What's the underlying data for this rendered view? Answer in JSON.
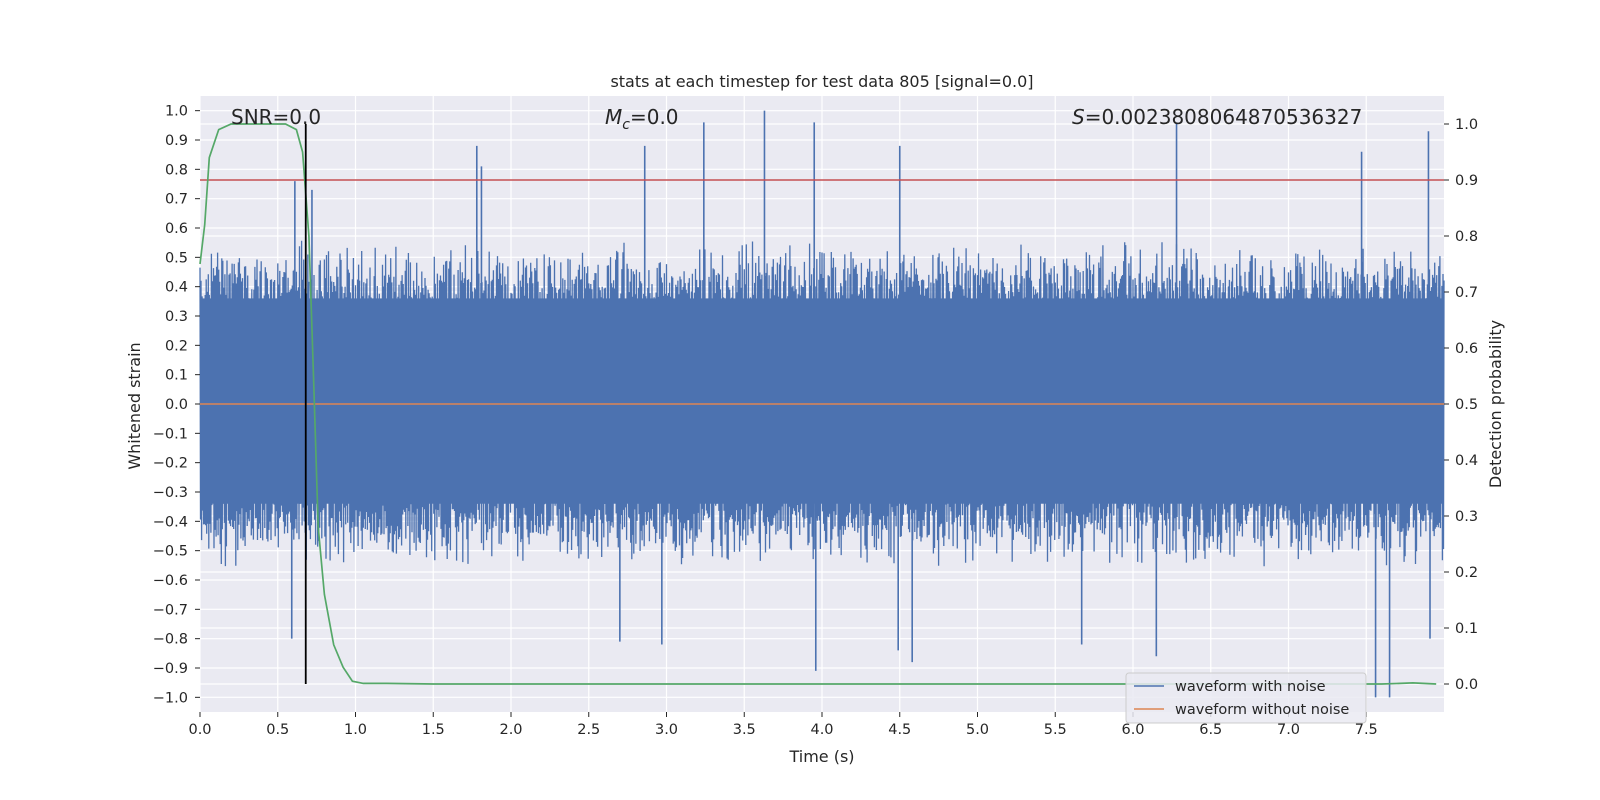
{
  "chart_data": {
    "type": "line",
    "title": "stats at each timestep for test data 805 [signal=0.0]",
    "xlabel": "Time (s)",
    "ylabel": "Whitened strain",
    "y2label": "Detection probability",
    "xlim": [
      0.0,
      8.0
    ],
    "ylim": [
      -1.05,
      1.05
    ],
    "y2lim": [
      -0.05,
      1.05
    ],
    "xticks": [
      "0.0",
      "0.5",
      "1.0",
      "1.5",
      "2.0",
      "2.5",
      "3.0",
      "3.5",
      "4.0",
      "4.5",
      "5.0",
      "5.5",
      "6.0",
      "6.5",
      "7.0",
      "7.5"
    ],
    "yticks": [
      "1.0",
      "0.9",
      "0.8",
      "0.7",
      "0.6",
      "0.5",
      "0.4",
      "0.3",
      "0.2",
      "0.1",
      "0.0",
      "-0.1",
      "-0.2",
      "-0.3",
      "-0.4",
      "-0.5",
      "-0.6",
      "-0.7",
      "-0.8",
      "-0.9",
      "-1.0"
    ],
    "y2ticks": [
      "1.0",
      "0.9",
      "0.8",
      "0.7",
      "0.6",
      "0.5",
      "0.4",
      "0.3",
      "0.2",
      "0.1",
      "0.0"
    ],
    "grid": true,
    "legend_placement": "lower-right",
    "annotations": {
      "snr": "SNR=0.0",
      "mc_symbol": "M",
      "mc_sub": "c",
      "mc_value": "=0.0",
      "s_symbol": "S",
      "s_value": "=0.0023808064870536327"
    },
    "series": [
      {
        "name": "waveform with noise",
        "color": "#4c72b0",
        "style": "dense noise, envelope approx ±0.4 to ±0.6 with spikes",
        "spikes": [
          [
            1.78,
            0.88
          ],
          [
            1.81,
            0.81
          ],
          [
            2.86,
            0.88
          ],
          [
            3.24,
            0.96
          ],
          [
            3.63,
            1.0
          ],
          [
            3.95,
            0.96
          ],
          [
            4.5,
            0.88
          ],
          [
            6.28,
            0.96
          ],
          [
            7.47,
            0.86
          ],
          [
            7.9,
            0.93
          ],
          [
            0.61,
            0.76
          ],
          [
            0.72,
            0.73
          ],
          [
            4.49,
            -0.84
          ],
          [
            3.96,
            -0.91
          ],
          [
            4.58,
            -0.88
          ],
          [
            7.56,
            -1.0
          ],
          [
            7.65,
            -1.0
          ],
          [
            2.97,
            -0.82
          ],
          [
            0.59,
            -0.8
          ],
          [
            2.7,
            -0.81
          ],
          [
            7.91,
            -0.8
          ],
          [
            5.67,
            -0.82
          ],
          [
            6.15,
            -0.86
          ]
        ]
      },
      {
        "name": "waveform without noise",
        "color": "#dd8452",
        "x": [
          0.0,
          8.0
        ],
        "y": [
          0.0,
          0.0
        ]
      },
      {
        "color": "#55a868",
        "axis": "right",
        "x": [
          0.0,
          0.03,
          0.06,
          0.12,
          0.2,
          0.3,
          0.45,
          0.55,
          0.62,
          0.66,
          0.7,
          0.73,
          0.76,
          0.8,
          0.86,
          0.92,
          0.98,
          1.05,
          1.2,
          1.5,
          2.0,
          3.0,
          4.0,
          5.0,
          6.0,
          7.0,
          7.6,
          7.8,
          7.95
        ],
        "y": [
          0.75,
          0.82,
          0.94,
          0.99,
          1.0,
          1.0,
          1.0,
          1.0,
          0.99,
          0.95,
          0.8,
          0.55,
          0.28,
          0.16,
          0.07,
          0.03,
          0.005,
          0.001,
          0.001,
          0.0,
          0.0,
          0.0,
          0.0,
          0.0,
          0.0,
          0.0,
          0.0,
          0.002,
          0.0
        ]
      }
    ],
    "hlines": [
      {
        "color": "#c44e52",
        "axis": "right",
        "y": 0.9
      }
    ],
    "vlines": [
      {
        "color": "#000000",
        "x": 0.68,
        "y2_range": [
          0.0,
          1.0
        ]
      }
    ]
  }
}
